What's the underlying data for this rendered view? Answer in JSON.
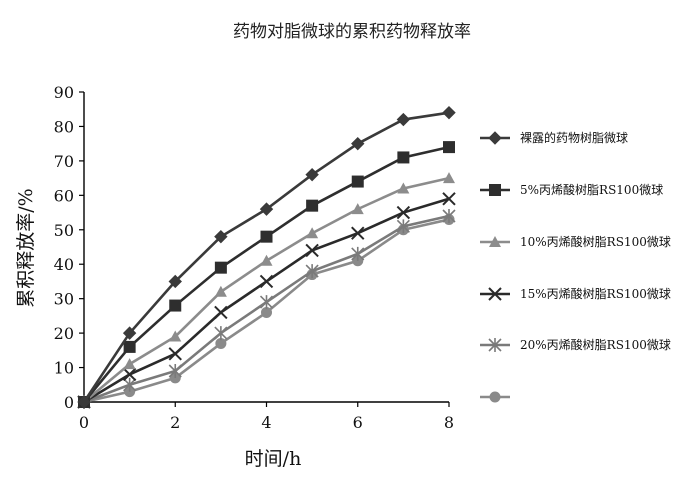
{
  "chart_data": {
    "type": "line",
    "title": "药物对脂微球的累积药物释放率",
    "xlabel": "时间/h",
    "ylabel": "累积释放率/%",
    "xlim": [
      0,
      8
    ],
    "ylim": [
      0,
      90
    ],
    "xticks": [
      0,
      2,
      4,
      6,
      8
    ],
    "yticks": [
      0,
      10,
      20,
      30,
      40,
      50,
      60,
      70,
      80,
      90
    ],
    "grid": false,
    "legend_position": "right",
    "x": [
      0,
      1,
      2,
      3,
      4,
      5,
      6,
      7,
      8
    ],
    "series": [
      {
        "name": "裸露的药物树脂微球",
        "values": [
          0,
          20,
          35,
          48,
          56,
          66,
          75,
          82,
          84
        ],
        "color": "#3a3a3a",
        "marker": "diamond"
      },
      {
        "name": "5%丙烯酸树脂RS100微球",
        "values": [
          0,
          16,
          28,
          39,
          48,
          57,
          64,
          71,
          74
        ],
        "color": "#2e2e2e",
        "marker": "square"
      },
      {
        "name": "10%丙烯酸树脂RS100微球",
        "values": [
          0,
          11,
          19,
          32,
          41,
          49,
          56,
          62,
          65
        ],
        "color": "#8c8c8c",
        "marker": "triangle"
      },
      {
        "name": "15%丙烯酸树脂RS100微球",
        "values": [
          0,
          8,
          14,
          26,
          35,
          44,
          49,
          55,
          59
        ],
        "color": "#2a2a2a",
        "marker": "x"
      },
      {
        "name": "20%丙烯酸树脂RS100微球",
        "values": [
          0,
          5,
          9,
          20,
          29,
          38,
          43,
          51,
          54
        ],
        "color": "#7a7a7a",
        "marker": "asterisk"
      },
      {
        "name": "",
        "values": [
          0,
          3,
          7,
          17,
          26,
          37,
          41,
          50,
          53
        ],
        "color": "#8a8a8a",
        "marker": "circle"
      }
    ]
  }
}
